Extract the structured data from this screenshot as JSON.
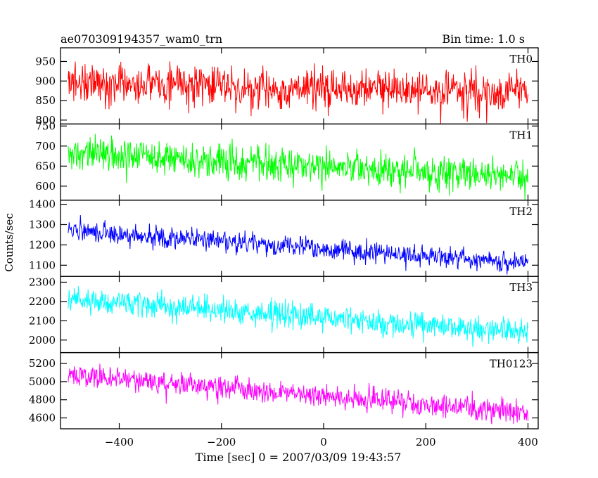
{
  "header": {
    "title": "ae070309194357_wam0_trn",
    "bin_time": "Bin time: 1.0 s"
  },
  "axes": {
    "ylabel": "Counts/sec",
    "xlabel": "Time [sec] 0 = 2007/03/09 19:43:57",
    "x_ticks": [
      -400,
      -200,
      0,
      200,
      400
    ],
    "x_tick_labels": [
      "−400",
      "−200",
      "0",
      "200",
      "400"
    ]
  },
  "chart_data": [
    {
      "type": "line",
      "name": "TH0",
      "color": "#ff0000",
      "xlim": [
        -515,
        420
      ],
      "ylim": [
        790,
        985
      ],
      "yticks": [
        800,
        850,
        900,
        950
      ],
      "x_range": [
        -500,
        400
      ],
      "start_mean": 895,
      "end_mean": 870,
      "noise": 35,
      "grid": false
    },
    {
      "type": "line",
      "name": "TH1",
      "color": "#00ff00",
      "xlim": [
        -515,
        420
      ],
      "ylim": [
        565,
        755
      ],
      "yticks": [
        600,
        650,
        700,
        750
      ],
      "x_range": [
        -500,
        400
      ],
      "start_mean": 680,
      "end_mean": 625,
      "noise": 28,
      "grid": false
    },
    {
      "type": "line",
      "name": "TH2",
      "color": "#0000ff",
      "xlim": [
        -515,
        420
      ],
      "ylim": [
        1045,
        1420
      ],
      "yticks": [
        1100,
        1200,
        1300,
        1400
      ],
      "x_range": [
        -500,
        400
      ],
      "start_mean": 1270,
      "end_mean": 1110,
      "noise": 35,
      "grid": false
    },
    {
      "type": "line",
      "name": "TH3",
      "color": "#00ffff",
      "xlim": [
        -515,
        420
      ],
      "ylim": [
        1935,
        2330
      ],
      "yticks": [
        2000,
        2100,
        2200,
        2300
      ],
      "x_range": [
        -500,
        400
      ],
      "start_mean": 2215,
      "end_mean": 2040,
      "noise": 45,
      "grid": false
    },
    {
      "type": "line",
      "name": "TH0123",
      "color": "#ff00ff",
      "xlim": [
        -515,
        420
      ],
      "ylim": [
        4480,
        5320
      ],
      "yticks": [
        4600,
        4800,
        5000,
        5200
      ],
      "x_range": [
        -500,
        400
      ],
      "start_mean": 5080,
      "end_mean": 4650,
      "noise": 85,
      "grid": false
    }
  ]
}
